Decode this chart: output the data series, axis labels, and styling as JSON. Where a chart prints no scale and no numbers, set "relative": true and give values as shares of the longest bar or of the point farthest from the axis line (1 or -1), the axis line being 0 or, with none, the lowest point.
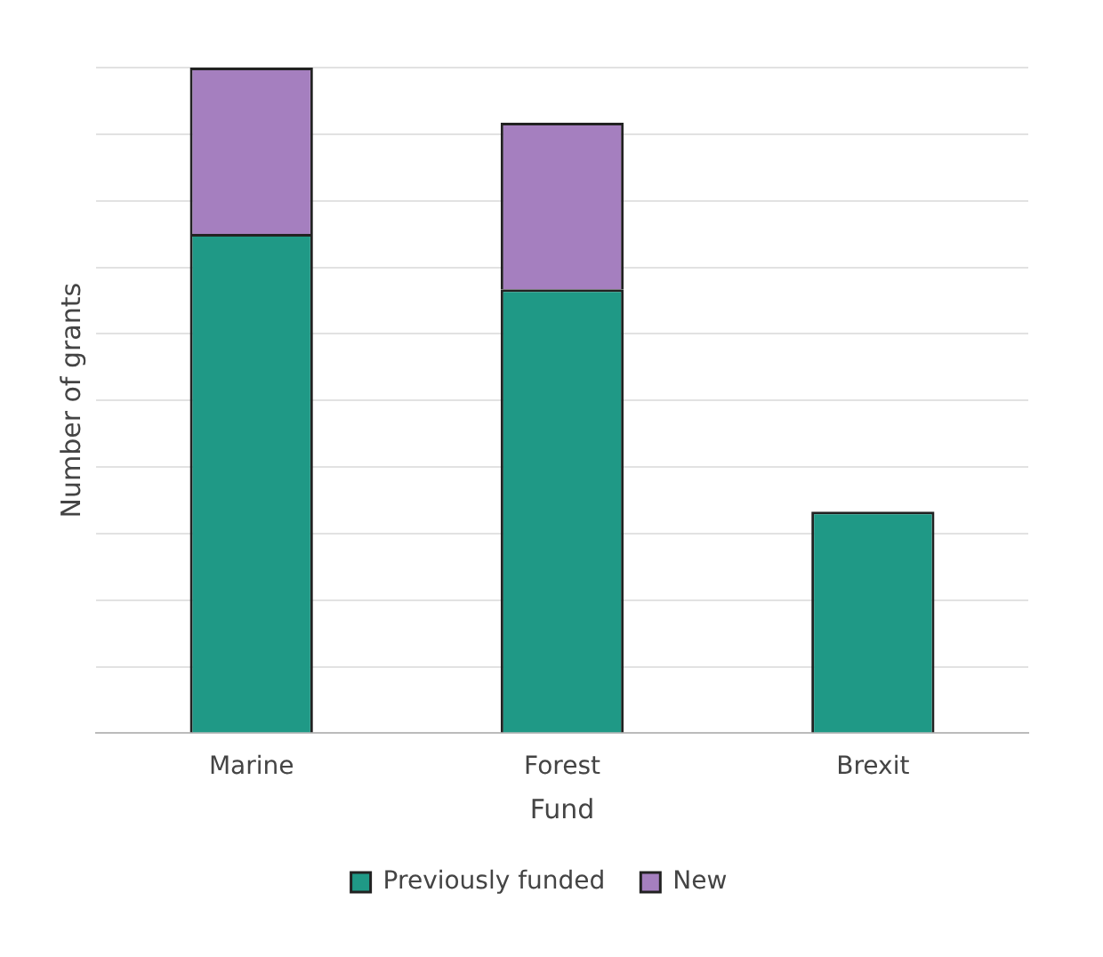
{
  "chart_data": {
    "type": "bar",
    "xlabel": "Fund",
    "ylabel": "Number of grants",
    "categories": [
      "Marine",
      "Forest",
      "Brexit"
    ],
    "stacked": true,
    "relative": true,
    "grid": "y",
    "legend": "bottom",
    "series": [
      {
        "name": "Previously funded",
        "color": "#1f9986",
        "values": [
          0.75,
          0.667,
          0.333
        ]
      },
      {
        "name": "New",
        "color": "#a57fbf",
        "values": [
          0.25,
          0.25,
          null
        ]
      }
    ]
  }
}
